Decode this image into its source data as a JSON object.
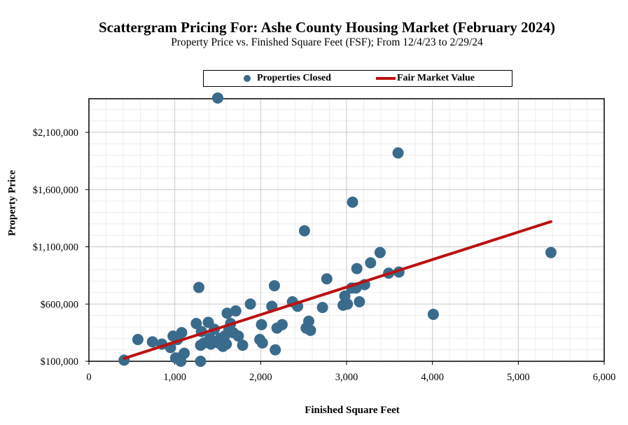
{
  "chart_data": {
    "type": "scatter",
    "title": "Scattergram Pricing For: Ashe County Housing Market (February 2024)",
    "subtitle": "Property Price vs. Finished Square Feet (FSF); From 12/4/23 to 2/29/24",
    "xlabel": "Finished Square Feet",
    "ylabel": "Property Price",
    "xlim": [
      0,
      6000
    ],
    "ylim": [
      100000,
      2400000
    ],
    "x_ticks": [
      0,
      1000,
      2000,
      3000,
      4000,
      5000,
      6000
    ],
    "x_tick_labels": [
      "0",
      "1,000",
      "2,000",
      "3,000",
      "4,000",
      "5,000",
      "6,000"
    ],
    "y_ticks": [
      100000,
      600000,
      1100000,
      1600000,
      2100000
    ],
    "y_tick_labels": [
      "$100,000",
      "$600,000",
      "$1,100,000",
      "$1,600,000",
      "$2,100,000"
    ],
    "grid": true,
    "legend": "top",
    "series": [
      {
        "name": "Properties Closed",
        "color": "#3a6b8c",
        "points": [
          [
            410,
            110000
          ],
          [
            570,
            290000
          ],
          [
            740,
            270000
          ],
          [
            850,
            250000
          ],
          [
            950,
            220000
          ],
          [
            980,
            320000
          ],
          [
            1030,
            290000
          ],
          [
            1010,
            130000
          ],
          [
            1060,
            130000
          ],
          [
            1080,
            350000
          ],
          [
            1070,
            100000
          ],
          [
            1110,
            170000
          ],
          [
            1280,
            745000
          ],
          [
            1300,
            100000
          ],
          [
            1250,
            430000
          ],
          [
            1300,
            240000
          ],
          [
            1310,
            360000
          ],
          [
            1340,
            260000
          ],
          [
            1390,
            440000
          ],
          [
            1410,
            300000
          ],
          [
            1420,
            250000
          ],
          [
            1460,
            380000
          ],
          [
            1500,
            2400000
          ],
          [
            1510,
            260000
          ],
          [
            1530,
            300000
          ],
          [
            1560,
            230000
          ],
          [
            1580,
            320000
          ],
          [
            1600,
            250000
          ],
          [
            1610,
            520000
          ],
          [
            1630,
            380000
          ],
          [
            1650,
            430000
          ],
          [
            1680,
            350000
          ],
          [
            1710,
            540000
          ],
          [
            1740,
            320000
          ],
          [
            1790,
            240000
          ],
          [
            1880,
            600000
          ],
          [
            1990,
            290000
          ],
          [
            2010,
            420000
          ],
          [
            2020,
            260000
          ],
          [
            2130,
            580000
          ],
          [
            2160,
            760000
          ],
          [
            2170,
            200000
          ],
          [
            2190,
            390000
          ],
          [
            2250,
            420000
          ],
          [
            2370,
            620000
          ],
          [
            2430,
            580000
          ],
          [
            2510,
            1240000
          ],
          [
            2530,
            390000
          ],
          [
            2560,
            450000
          ],
          [
            2580,
            370000
          ],
          [
            2720,
            570000
          ],
          [
            2770,
            820000
          ],
          [
            2960,
            590000
          ],
          [
            2980,
            670000
          ],
          [
            3010,
            600000
          ],
          [
            3060,
            740000
          ],
          [
            3070,
            1490000
          ],
          [
            3110,
            740000
          ],
          [
            3120,
            910000
          ],
          [
            3150,
            620000
          ],
          [
            3210,
            770000
          ],
          [
            3280,
            960000
          ],
          [
            3390,
            1050000
          ],
          [
            3490,
            870000
          ],
          [
            3600,
            1920000
          ],
          [
            3610,
            880000
          ],
          [
            4010,
            510000
          ],
          [
            5380,
            1050000
          ]
        ]
      },
      {
        "name": "Fair Market Value",
        "color": "#bb1111",
        "type": "line",
        "points": [
          [
            410,
            125000
          ],
          [
            5380,
            1320000
          ]
        ]
      }
    ]
  }
}
